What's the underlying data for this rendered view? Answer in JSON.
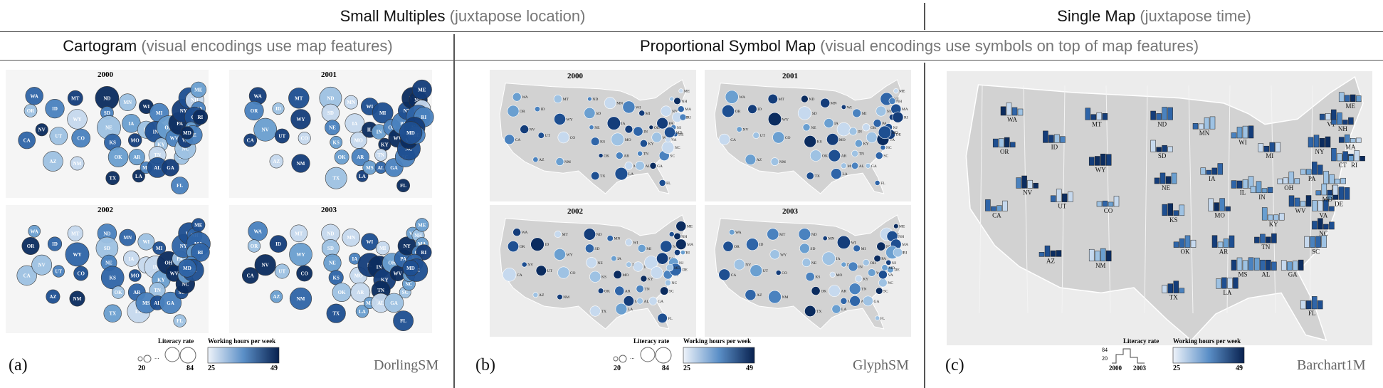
{
  "headers": {
    "small_multiples": {
      "main": "Small Multiples",
      "sub": "(juxtapose location)"
    },
    "single_map": {
      "main": "Single Map",
      "sub": "(juxtapose time)"
    },
    "cartogram": {
      "main": "Cartogram",
      "sub": "(visual encodings use map features)"
    },
    "symbol_map": {
      "main": "Proportional Symbol Map",
      "sub": "(visual encodings use symbols on top of map features)"
    }
  },
  "panels": [
    {
      "id": "a",
      "label": "(a)",
      "method": "DorlingSM"
    },
    {
      "id": "b",
      "label": "(b)",
      "method": "GlyphSM"
    },
    {
      "id": "c",
      "label": "(c)",
      "method": "Barchart1M"
    }
  ],
  "years": [
    "2000",
    "2001",
    "2002",
    "2003"
  ],
  "legend": {
    "literacy_title": "Literacy rate",
    "hours_title": "Working hours per week",
    "literacy_min": "20",
    "literacy_max": "84",
    "literacy_dots": "...",
    "hours_min": "25",
    "hours_max": "49",
    "bar_y_max": "84",
    "bar_y_min": "20",
    "bar_x_start": "2000",
    "bar_x_end": "2003"
  },
  "colors": {
    "light": "#dbe6f3",
    "dark": "#08214f",
    "map_fill": "#d2d2d2",
    "map_bg": "#ececec"
  },
  "states": [
    "WA",
    "OR",
    "CA",
    "NV",
    "ID",
    "MT",
    "WY",
    "UT",
    "AZ",
    "CO",
    "NM",
    "ND",
    "SD",
    "NE",
    "KS",
    "OK",
    "TX",
    "MN",
    "IA",
    "MO",
    "AR",
    "LA",
    "WI",
    "IL",
    "MI",
    "IN",
    "KY",
    "TN",
    "MS",
    "AL",
    "OH",
    "WV",
    "GA",
    "FL",
    "SC",
    "NC",
    "VA",
    "PA",
    "NY",
    "VT",
    "NH",
    "ME",
    "MA",
    "CT",
    "RI",
    "NJ",
    "DE",
    "MD"
  ],
  "barchart_states": [
    "WA",
    "OR",
    "CA",
    "NV",
    "ID",
    "MT",
    "WY",
    "UT",
    "AZ",
    "CO",
    "NM",
    "ND",
    "SD",
    "NE",
    "KS",
    "OK",
    "TX",
    "MN",
    "IA",
    "MO",
    "AR",
    "LA",
    "WI",
    "IL",
    "MI",
    "IN",
    "KY",
    "TN",
    "MS",
    "AL",
    "OH",
    "WV",
    "GA",
    "FL",
    "SC",
    "NC",
    "VA",
    "PA",
    "NY",
    "VT",
    "NH",
    "ME",
    "MA",
    "CT",
    "RI",
    "NJ",
    "DE",
    "MD"
  ]
}
